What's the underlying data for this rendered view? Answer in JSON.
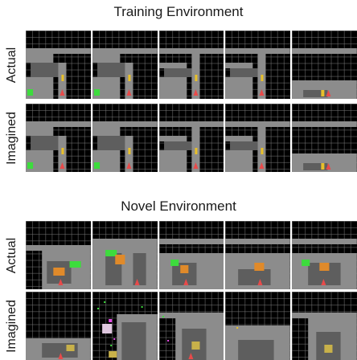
{
  "sections": [
    {
      "title": "Training Environment",
      "rows": [
        {
          "label": "Actual"
        },
        {
          "label": "Imagined"
        }
      ]
    },
    {
      "title": "Novel Environment",
      "rows": [
        {
          "label": "Actual"
        },
        {
          "label": "Imagined"
        }
      ]
    }
  ],
  "colors": {
    "background": "#000000",
    "wall": "#8c8c8c",
    "floor": "#6a6a6a",
    "agent": "#e84a4a",
    "goal": "#3ddc3d",
    "key": "#e8c02a",
    "lava": "#e08a2a"
  }
}
